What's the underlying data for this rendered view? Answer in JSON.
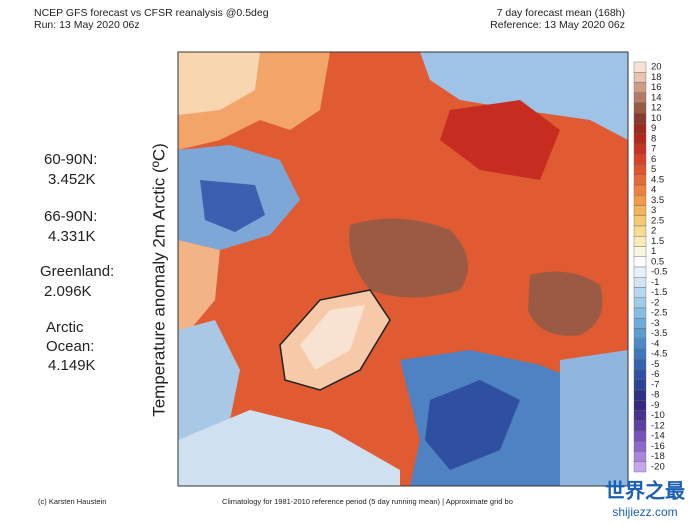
{
  "header": {
    "title": "NCEP GFS forecast vs CFSR reanalysis @0.5deg",
    "run": "Run: 13 May 2020 06z",
    "period": "7 day forecast mean (168h)",
    "reference": "Reference: 13 May 2020 06z"
  },
  "axis_label": "Temperature anomaly 2m Arctic (ºC)",
  "stats": [
    {
      "name": "60-90N:",
      "value": "3.452K"
    },
    {
      "name": "66-90N:",
      "value": "4.331K"
    },
    {
      "name": "Greenland:",
      "value": "2.096K"
    },
    {
      "name": "Arctic Ocean:",
      "value": "4.149K"
    }
  ],
  "colorbar": {
    "labels": [
      20,
      18,
      16,
      14,
      12,
      10,
      9,
      8,
      7,
      6,
      5,
      4.5,
      4,
      3.5,
      3,
      2.5,
      2,
      1.5,
      1,
      0.5,
      -0.5,
      -1,
      -1.5,
      -2,
      -2.5,
      -3,
      -3.5,
      -4,
      -4.5,
      -5,
      -6,
      -7,
      -8,
      -9,
      -10,
      -12,
      -14,
      -16,
      -18,
      -20
    ],
    "colors": [
      "#f6e3d6",
      "#e8c3b0",
      "#cf9c86",
      "#b77a64",
      "#9b5a45",
      "#8a3a2a",
      "#9e2a1e",
      "#b7281c",
      "#c93222",
      "#d8432a",
      "#e05530",
      "#e86a38",
      "#ee8040",
      "#f29a4a",
      "#f5b45c",
      "#f7c874",
      "#f8dc92",
      "#faeab8",
      "#fdf6de",
      "#ffffff",
      "#e6f2fa",
      "#d0e6f5",
      "#b7d8ee",
      "#9ecbe8",
      "#86bde1",
      "#6eadd9",
      "#5b9dd1",
      "#4c8bc8",
      "#3f77bd",
      "#3664b0",
      "#2f52a2",
      "#2a4294",
      "#2b3286",
      "#35287f",
      "#48318f",
      "#5e40a3",
      "#7552b8",
      "#8d68cc",
      "#a785de",
      "#c3a6ec"
    ]
  },
  "footer": {
    "credit": "(c) Karsten Haustein",
    "note": "Climatology for 1981-2010 reference period (5 day running mean) | Approximate grid bo"
  },
  "watermark": {
    "cn": "世界之最",
    "url": "shijiezz.com"
  }
}
